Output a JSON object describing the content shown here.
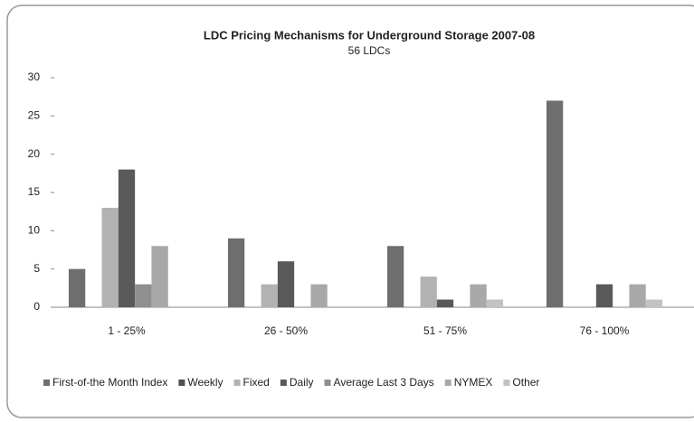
{
  "chart_data": {
    "type": "bar",
    "title": "LDC Pricing Mechanisms for Underground Storage 2007-08",
    "subtitle": "56 LDCs",
    "categories": [
      "1 - 25%",
      "26 - 50%",
      "51 - 75%",
      "76 - 100%"
    ],
    "series": [
      {
        "name": "First-of-the Month Index",
        "color": "#6e6e6e",
        "values": [
          5,
          9,
          8,
          27
        ]
      },
      {
        "name": "Weekly",
        "color": "#4f4f4f",
        "values": [
          0,
          0,
          0,
          0
        ]
      },
      {
        "name": "Fixed",
        "color": "#b2b2b2",
        "values": [
          13,
          3,
          4,
          0
        ]
      },
      {
        "name": "Daily",
        "color": "#595959",
        "values": [
          18,
          6,
          1,
          3
        ]
      },
      {
        "name": "Average Last 3 Days",
        "color": "#8f8f8f",
        "values": [
          3,
          0,
          0,
          0
        ]
      },
      {
        "name": "NYMEX",
        "color": "#a8a8a8",
        "values": [
          8,
          3,
          3,
          3
        ]
      },
      {
        "name": "Other",
        "color": "#c2c2c2",
        "values": [
          0,
          0,
          1,
          1
        ]
      }
    ],
    "ylim": [
      0,
      30
    ],
    "yticks": [
      0,
      5,
      10,
      15,
      20,
      25,
      30
    ],
    "grid": false,
    "legend": "bottom"
  }
}
